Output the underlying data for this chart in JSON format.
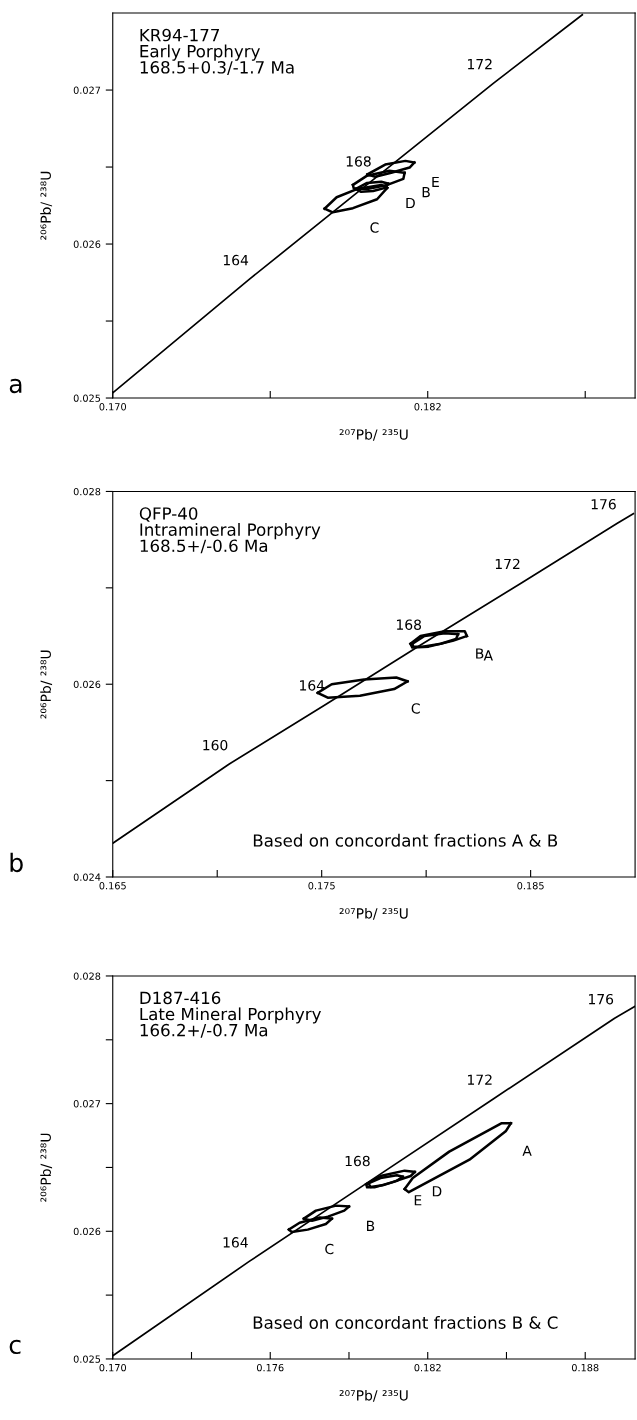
{
  "chart_data": [
    {
      "type": "line",
      "title": "KR94-177\nEarly Porphyry\n168.5+0.3/-1.7 Ma",
      "xlabel": "²⁰⁷Pb/ ²³⁵U",
      "ylabel": "²⁰⁶Pb/ ²³⁸U",
      "xlim": [
        0.17,
        0.1899
      ],
      "ylim": [
        0.025,
        0.0275
      ],
      "xticks": [
        {
          "value": 0.17,
          "label": "0.170"
        },
        {
          "value": 0.176,
          "label": null
        },
        {
          "value": 0.182,
          "label": "0.182"
        },
        {
          "value": 0.188,
          "label": null
        }
      ],
      "yticks": [
        {
          "value": 0.025,
          "label": "0.025"
        },
        {
          "value": 0.0255,
          "label": null
        },
        {
          "value": 0.026,
          "label": "0.026"
        },
        {
          "value": 0.0265,
          "label": null
        },
        {
          "value": 0.027,
          "label": "0.027"
        }
      ],
      "grid": false,
      "legend": false,
      "marker": "none",
      "line_style": "solid",
      "series": [
        {
          "color": "#000000",
          "x": [
            0.17,
            0.17521,
            0.17989,
            0.18451,
            0.18789
          ],
          "values": [
            0.025034,
            0.025772,
            0.026413,
            0.027045,
            0.027489
          ]
        },
        {
          "color": "#000000",
          "x": [
            0.17807,
            0.17853,
            0.1793,
            0.18023,
            0.18046
          ],
          "values": [
            0.02623,
            0.026304,
            0.026357,
            0.026384,
            0.026365
          ]
        },
        {
          "color": "#000000",
          "x": [
            0.17807,
            0.17838,
            0.17915,
            0.18007,
            0.18046
          ],
          "values": [
            0.02623,
            0.026206,
            0.026233,
            0.026291,
            0.026365
          ]
        },
        {
          "color": "#000000",
          "x": [
            0.17915,
            0.17969,
            0.18054,
            0.18112
          ],
          "values": [
            0.026384,
            0.026444,
            0.026476,
            0.026463
          ]
        },
        {
          "color": "#000000",
          "x": [
            0.17915,
            0.17918,
            0.17969,
            0.18046,
            0.18107,
            0.18112
          ],
          "values": [
            0.026384,
            0.026362,
            0.026357,
            0.026384,
            0.026423,
            0.026463
          ]
        },
        {
          "color": "#000000",
          "x": [
            0.1797,
            0.18038,
            0.18115,
            0.18149
          ],
          "values": [
            0.026452,
            0.026516,
            0.02654,
            0.026529
          ]
        },
        {
          "color": "#000000",
          "x": [
            0.1797,
            0.18,
            0.18061,
            0.18131,
            0.18149
          ],
          "values": [
            0.026452,
            0.026437,
            0.026463,
            0.026497,
            0.026529
          ]
        },
        {
          "color": "#000000",
          "x": [
            0.17925,
            0.17969,
            0.18023,
            0.1805
          ],
          "values": [
            0.026357,
            0.026397,
            0.026405,
            0.026392
          ]
        },
        {
          "color": "#000000",
          "x": [
            0.17925,
            0.17946,
            0.17992,
            0.18038,
            0.1805
          ],
          "values": [
            0.026357,
            0.026339,
            0.026344,
            0.026365,
            0.026392
          ]
        }
      ],
      "annotations": [
        "a",
        {
          "text": "164",
          "x": 0.17521,
          "y": 0.025772
        },
        {
          "text": "168",
          "x": 0.17989,
          "y": 0.026413
        },
        {
          "text": "172",
          "x": 0.18451,
          "y": 0.027045
        },
        {
          "text": "E",
          "x": 0.18149,
          "y": 0.026529
        },
        {
          "text": "B",
          "x": 0.18112,
          "y": 0.026463
        },
        {
          "text": "D",
          "x": 0.1805,
          "y": 0.026392
        },
        {
          "text": "C",
          "x": 0.17915,
          "y": 0.026233
        }
      ]
    },
    {
      "type": "line",
      "title": "QFP-40\nIntramineral Porphyry\n168.5+/-0.6 Ma",
      "xlabel": "²⁰⁷Pb/ ²³⁵U",
      "ylabel": "²⁰⁶Pb/ ²³⁸U",
      "xlim": [
        0.165,
        0.19
      ],
      "ylim": [
        0.024,
        0.028
      ],
      "xticks": [
        {
          "value": 0.165,
          "label": "0.165"
        },
        {
          "value": 0.17,
          "label": null
        },
        {
          "value": 0.175,
          "label": "0.175"
        },
        {
          "value": 0.18,
          "label": null
        },
        {
          "value": 0.185,
          "label": "0.185"
        }
      ],
      "yticks": [
        {
          "value": 0.024,
          "label": "0.024"
        },
        {
          "value": 0.025,
          "label": null
        },
        {
          "value": 0.026,
          "label": "0.026"
        },
        {
          "value": 0.027,
          "label": null
        },
        {
          "value": 0.028,
          "label": "0.028"
        }
      ],
      "grid": false,
      "legend": false,
      "marker": "none",
      "line_style": "solid",
      "series": [
        {
          "color": "#000000",
          "x": [
            0.165,
            0.17056,
            0.17519,
            0.17983,
            0.18456,
            0.18915,
            0.18992
          ],
          "values": [
            0.02435,
            0.02517,
            0.02579,
            0.02642,
            0.02705,
            0.02767,
            0.02777
          ]
        },
        {
          "color": "#000000",
          "x": [
            0.17481,
            0.17548,
            0.17703,
            0.17857,
            0.17911
          ],
          "values": [
            0.02591,
            0.026,
            0.02605,
            0.02607,
            0.02603
          ]
        },
        {
          "color": "#000000",
          "x": [
            0.17481,
            0.17529,
            0.17683,
            0.17847,
            0.17911
          ],
          "values": [
            0.02591,
            0.02586,
            0.02588,
            0.02595,
            0.02603
          ]
        },
        {
          "color": "#000000",
          "x": [
            0.17925,
            0.17973,
            0.18089,
            0.18185,
            0.18195
          ],
          "values": [
            0.02642,
            0.0265,
            0.02655,
            0.02655,
            0.0265
          ]
        },
        {
          "color": "#000000",
          "x": [
            0.17925,
            0.17934,
            0.18012,
            0.18127,
            0.18195
          ],
          "values": [
            0.02642,
            0.02638,
            0.02639,
            0.02645,
            0.0265
          ]
        },
        {
          "color": "#000000",
          "x": [
            0.17934,
            0.17992,
            0.18089,
            0.18153
          ],
          "values": [
            0.02642,
            0.0265,
            0.02653,
            0.02652
          ]
        },
        {
          "color": "#000000",
          "x": [
            0.17934,
            0.17938,
            0.17983,
            0.1807,
            0.18143,
            0.18153
          ],
          "values": [
            0.02642,
            0.02639,
            0.02639,
            0.02642,
            0.02647,
            0.02652
          ]
        }
      ],
      "annotations": [
        "b",
        "Based on concordant fractions A & B",
        {
          "text": "160",
          "x": 0.17056,
          "y": 0.02517
        },
        {
          "text": "164",
          "x": 0.17519,
          "y": 0.02579
        },
        {
          "text": "168",
          "x": 0.17983,
          "y": 0.02642
        },
        {
          "text": "172",
          "x": 0.18456,
          "y": 0.02705
        },
        {
          "text": "176",
          "x": 0.18915,
          "y": 0.02767
        },
        {
          "text": "A",
          "x": 0.18195,
          "y": 0.0265
        },
        {
          "text": "B",
          "x": 0.18153,
          "y": 0.02652
        },
        {
          "text": "C",
          "x": 0.17847,
          "y": 0.02595
        }
      ]
    },
    {
      "type": "line",
      "title": "D187-416\nLate Mineral Porphyry\n166.2+/-0.7 Ma",
      "xlabel": "²⁰⁷Pb/ ²³⁵U",
      "ylabel": "²⁰⁶Pb/ ²³⁸U",
      "xlim": [
        0.17,
        0.1899
      ],
      "ylim": [
        0.025,
        0.028
      ],
      "xticks": [
        {
          "value": 0.17,
          "label": "0.170"
        },
        {
          "value": 0.173,
          "label": null
        },
        {
          "value": 0.176,
          "label": "0.176"
        },
        {
          "value": 0.179,
          "label": null
        },
        {
          "value": 0.182,
          "label": "0.182"
        },
        {
          "value": 0.185,
          "label": null
        },
        {
          "value": 0.188,
          "label": "0.188"
        }
      ],
      "yticks": [
        {
          "value": 0.025,
          "label": "0.025"
        },
        {
          "value": 0.0255,
          "label": null
        },
        {
          "value": 0.026,
          "label": "0.026"
        },
        {
          "value": 0.0265,
          "label": null
        },
        {
          "value": 0.027,
          "label": "0.027"
        },
        {
          "value": 0.0275,
          "label": null
        },
        {
          "value": 0.028,
          "label": "0.028"
        }
      ],
      "grid": false,
      "legend": false,
      "marker": "none",
      "line_style": "solid",
      "series": [
        {
          "color": "#000000",
          "x": [
            0.17,
            0.1752,
            0.17985,
            0.18451,
            0.18912,
            0.18989
          ],
          "values": [
            0.025025,
            0.025764,
            0.026401,
            0.027038,
            0.027669,
            0.027761
          ]
        },
        {
          "color": "#000000",
          "x": [
            0.18112,
            0.18143,
            0.18282,
            0.18482,
            0.18517
          ],
          "values": [
            0.026331,
            0.026417,
            0.026624,
            0.026847,
            0.026847
          ]
        },
        {
          "color": "#000000",
          "x": [
            0.18112,
            0.18128,
            0.18359,
            0.18497,
            0.18517
          ],
          "values": [
            0.026331,
            0.026306,
            0.026561,
            0.026783,
            0.026847
          ]
        },
        {
          "color": "#000000",
          "x": [
            0.17966,
            0.1802,
            0.18112,
            0.18151
          ],
          "values": [
            0.026369,
            0.026433,
            0.026475,
            0.026465
          ]
        },
        {
          "color": "#000000",
          "x": [
            0.17966,
            0.17969,
            0.17997,
            0.18066,
            0.18135,
            0.18151
          ],
          "values": [
            0.026369,
            0.026344,
            0.026344,
            0.026385,
            0.026433,
            0.026465
          ]
        },
        {
          "color": "#000000",
          "x": [
            0.17974,
            0.1802,
            0.18082,
            0.18105
          ],
          "values": [
            0.026376,
            0.026417,
            0.026439,
            0.026427
          ]
        },
        {
          "color": "#000000",
          "x": [
            0.17974,
            0.17982,
            0.18028,
            0.18082,
            0.18105
          ],
          "values": [
            0.026376,
            0.026347,
            0.02636,
            0.026395,
            0.026427
          ]
        },
        {
          "color": "#000000",
          "x": [
            0.17728,
            0.17774,
            0.17851,
            0.179
          ],
          "values": [
            0.026099,
            0.026162,
            0.026201,
            0.026194
          ]
        },
        {
          "color": "#000000",
          "x": [
            0.17728,
            0.17759,
            0.1782,
            0.17882,
            0.179
          ],
          "values": [
            0.026099,
            0.026083,
            0.026115,
            0.026162,
            0.026194
          ]
        },
        {
          "color": "#000000",
          "x": [
            0.17671,
            0.17712,
            0.17789,
            0.17835
          ],
          "values": [
            0.026013,
            0.026067,
            0.026108,
            0.026099
          ]
        },
        {
          "color": "#000000",
          "x": [
            0.17671,
            0.17682,
            0.17743,
            0.17812,
            0.17835
          ],
          "values": [
            0.026013,
            0.025994,
            0.026013,
            0.026057,
            0.026099
          ]
        }
      ],
      "annotations": [
        "c",
        "Based on concordant fractions B & C",
        {
          "text": "164",
          "x": 0.1752,
          "y": 0.025764
        },
        {
          "text": "168",
          "x": 0.17985,
          "y": 0.026401
        },
        {
          "text": "172",
          "x": 0.18451,
          "y": 0.027038
        },
        {
          "text": "176",
          "x": 0.18912,
          "y": 0.027669
        },
        {
          "text": "D",
          "x": 0.18151,
          "y": 0.026465
        },
        {
          "text": "E",
          "x": 0.18082,
          "y": 0.026395
        },
        {
          "text": "A",
          "x": 0.18497,
          "y": 0.026783
        },
        {
          "text": "B",
          "x": 0.179,
          "y": 0.026194
        },
        {
          "text": "C",
          "x": 0.17743,
          "y": 0.026013
        }
      ]
    }
  ]
}
